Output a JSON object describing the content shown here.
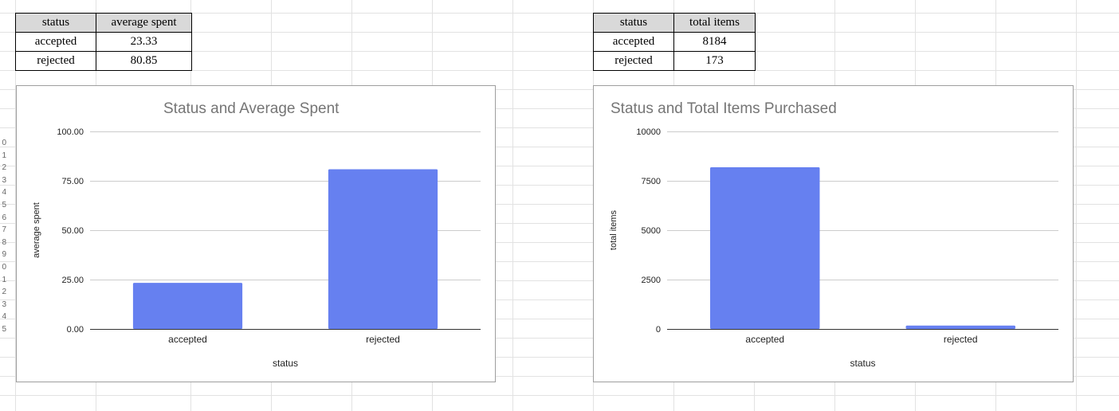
{
  "sheet": {
    "row_numbers": [
      "0",
      "1",
      "2",
      "3",
      "4",
      "5",
      "6",
      "7",
      "8",
      "9",
      "0",
      "1",
      "2",
      "3",
      "4",
      "5"
    ]
  },
  "tables": {
    "left": {
      "headers": [
        "status",
        "average spent"
      ],
      "rows": [
        [
          "accepted",
          "23.33"
        ],
        [
          "rejected",
          "80.85"
        ]
      ]
    },
    "right": {
      "headers": [
        "status",
        "total items"
      ],
      "rows": [
        [
          "accepted",
          "8184"
        ],
        [
          "rejected",
          "173"
        ]
      ]
    }
  },
  "colors": {
    "bar": "#6680f0",
    "title": "#757575",
    "gridline": "#cccccc",
    "axis": "#333333",
    "tick_text": "#222222"
  },
  "chart_data": [
    {
      "type": "bar",
      "title": "Status and Average Spent",
      "xlabel": "status",
      "ylabel": "average spent",
      "categories": [
        "accepted",
        "rejected"
      ],
      "values": [
        23.33,
        80.85
      ],
      "ylim": [
        0,
        100
      ],
      "yticks": [
        0,
        25,
        50,
        75,
        100
      ],
      "ytick_labels": [
        "0.00",
        "25.00",
        "50.00",
        "75.00",
        "100.00"
      ],
      "grid": true,
      "legend": "none"
    },
    {
      "type": "bar",
      "title": "Status and Total Items Purchased",
      "xlabel": "status",
      "ylabel": "total items",
      "categories": [
        "accepted",
        "rejected"
      ],
      "values": [
        8184,
        173
      ],
      "ylim": [
        0,
        10000
      ],
      "yticks": [
        0,
        2500,
        5000,
        7500,
        10000
      ],
      "ytick_labels": [
        "0",
        "2500",
        "5000",
        "7500",
        "10000"
      ],
      "grid": true,
      "legend": "none"
    }
  ]
}
